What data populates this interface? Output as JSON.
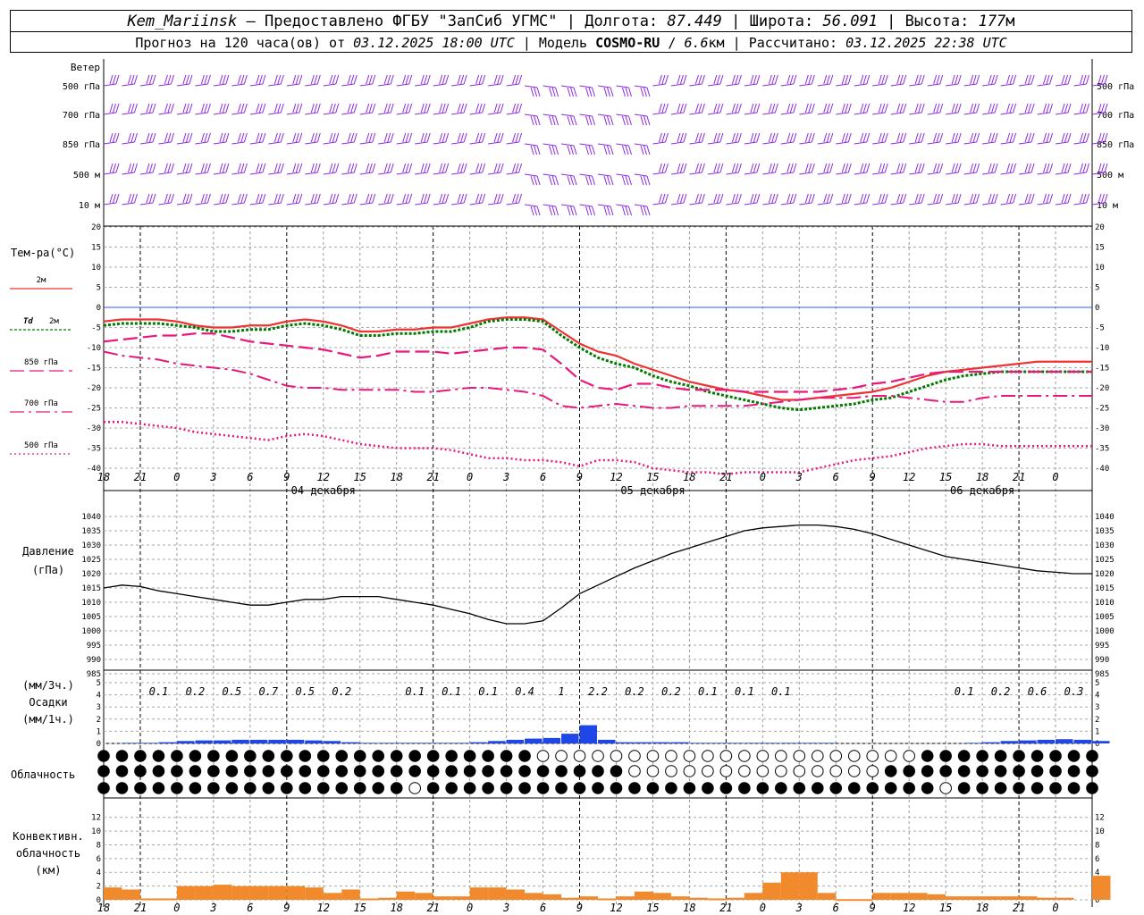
{
  "header": {
    "station": "Kem_Mariinsk",
    "dash": "–",
    "provided_by": "Предоставлено ФГБУ \"ЗапСиб УГМС\"",
    "sep": "|",
    "lon_label": "Долгота:",
    "lon_value": "87.449",
    "lat_label": "Широта:",
    "lat_value": "56.091",
    "alt_label": "Высота:",
    "alt_value": "177",
    "alt_unit": "м",
    "forecast_label": "Прогноз на 120 часа(ов) от",
    "forecast_start": "03.12.2025 18:00 UTC",
    "model_label": "Модель",
    "model_name": "COSMO-RU",
    "model_res_value": "6.6",
    "model_res_unit": "км",
    "computed_label": "Рассчитано:",
    "computed_time": "03.12.2025 22:38 UTC"
  },
  "colors": {
    "wind": "#8a2be2",
    "t2m": "#ee3333",
    "td2m": "#007a00",
    "t850": "#e8197a",
    "t700": "#e8197a",
    "t500": "#e8197a",
    "zero_line": "#3355ff",
    "precip": "#1f47e6",
    "conv": "#f08a2c",
    "pressure": "#000000"
  },
  "time_axis": {
    "hour_ticks": [
      "18",
      "21",
      "0",
      "3",
      "6",
      "9",
      "12",
      "15",
      "18",
      "21",
      "0",
      "3",
      "6",
      "9",
      "12",
      "15",
      "18",
      "21",
      "0",
      "3",
      "6",
      "9",
      "12",
      "15",
      "18",
      "21",
      "0"
    ],
    "dates": [
      "04 декабря",
      "05 декабря",
      "06 декабря"
    ]
  },
  "wind_panel": {
    "title": "Ветер",
    "levels": [
      "500 гПа",
      "700 гПа",
      "850 гПа",
      "500 м",
      "10  м"
    ]
  },
  "temp_panel": {
    "title": "Тем-ра(°C)",
    "legend": [
      {
        "label": "2м"
      },
      {
        "label_a": "Td",
        "label_b": "2м"
      },
      {
        "label": "850 гПа"
      },
      {
        "label": "700 гПа"
      },
      {
        "label": "500 гПа"
      }
    ],
    "ticks": [
      "20",
      "15",
      "10",
      "5",
      "0",
      "-5",
      "-10",
      "-15",
      "-20",
      "-25",
      "-30",
      "-35",
      "-40"
    ]
  },
  "pressure_panel": {
    "title": "Давление",
    "unit": "(гПа)",
    "ticks": [
      "1040",
      "1035",
      "1030",
      "1025",
      "1020",
      "1015",
      "1010",
      "1005",
      "1000",
      "995",
      "990",
      "985"
    ]
  },
  "precip_panel": {
    "title_a": "(мм/3ч.)",
    "title_b": "Осадки",
    "title_c": "(мм/1ч.)",
    "ticks": [
      "5",
      "4",
      "3",
      "2",
      "1",
      "0"
    ],
    "amounts_3h": [
      "0.1",
      "0.2",
      "0.5",
      "0.7",
      "0.5",
      "0.2",
      "",
      "0.1",
      "0.1",
      "0.1",
      "0.4",
      "1",
      "2.2",
      "0.2",
      "0.2",
      "0.1",
      "0.1",
      "0.1",
      "",
      "",
      "",
      "",
      "0.1",
      "0.2",
      "0.6",
      "0.3"
    ]
  },
  "cloud_panel": {
    "title": "Облачность"
  },
  "conv_panel": {
    "title_a": "Конвективн.",
    "title_b": "облачность",
    "title_c": "(км)",
    "ticks": [
      "12",
      "10",
      "8",
      "6",
      "4",
      "2",
      "0"
    ]
  },
  "chart_data": [
    {
      "type": "line",
      "title": "Тем-ра(°C)",
      "x": [
        0,
        3,
        6,
        9,
        12,
        15,
        18,
        21,
        24,
        27,
        30,
        33,
        36,
        39,
        42,
        45,
        48,
        51,
        54,
        57,
        60,
        63,
        66,
        69,
        72,
        75,
        78,
        81,
        84,
        87,
        90,
        93,
        96,
        99,
        102,
        105,
        108,
        111,
        114,
        117,
        120,
        123,
        126,
        129,
        132,
        135,
        138,
        141,
        144,
        147,
        150,
        153,
        156,
        159,
        162
      ],
      "series": [
        {
          "name": "2м",
          "values": [
            -3.5,
            -3,
            -3,
            -3,
            -3.5,
            -4.5,
            -5,
            -5,
            -4.5,
            -4.5,
            -3.5,
            -3,
            -3.5,
            -4.5,
            -6,
            -6,
            -5.5,
            -5.5,
            -5,
            -5,
            -4,
            -3,
            -2.5,
            -2.5,
            -3,
            -6,
            -9,
            -11,
            -12,
            -14,
            -15.5,
            -17,
            -18.5,
            -19.5,
            -20.5,
            -21,
            -22,
            -23,
            -23,
            -22.5,
            -22,
            -21.5,
            -21,
            -20,
            -18.5,
            -17,
            -16,
            -15.5,
            -15,
            -14.5,
            -14,
            -13.5,
            -13.5,
            -13.5,
            -13.5
          ]
        },
        {
          "name": "Td 2м",
          "values": [
            -4.5,
            -4,
            -4,
            -4,
            -4.5,
            -5,
            -6,
            -6,
            -5.5,
            -5.5,
            -4.5,
            -4,
            -4.5,
            -5.5,
            -7,
            -7,
            -6.5,
            -6.5,
            -6,
            -6,
            -5,
            -3.5,
            -3,
            -3,
            -3.5,
            -7,
            -10,
            -12.5,
            -14,
            -15,
            -17,
            -18.5,
            -19.5,
            -21,
            -22,
            -23,
            -24,
            -25,
            -25.5,
            -25,
            -24.5,
            -24,
            -23,
            -22.5,
            -21,
            -19.5,
            -18,
            -17,
            -16.5,
            -16,
            -16,
            -16,
            -16,
            -16,
            -16
          ]
        },
        {
          "name": "850 гПа",
          "values": [
            -8.5,
            -8,
            -7.5,
            -7,
            -7,
            -6.5,
            -6.5,
            -7.5,
            -8.5,
            -9,
            -9.5,
            -10,
            -10.5,
            -11.5,
            -12.5,
            -12,
            -11,
            -11,
            -11,
            -11.5,
            -11,
            -10.5,
            -10,
            -10,
            -10.5,
            -14,
            -18,
            -20,
            -20.5,
            -19,
            -19,
            -20,
            -20.5,
            -20.5,
            -20.5,
            -21,
            -21,
            -21,
            -21,
            -21,
            -20.5,
            -20,
            -19,
            -18.5,
            -17.5,
            -16.5,
            -16,
            -16,
            -16,
            -16,
            -16,
            -16,
            -16,
            -16,
            -16
          ]
        },
        {
          "name": "700 гПа",
          "values": [
            -11,
            -12,
            -12.5,
            -13,
            -14,
            -14.5,
            -15,
            -15.5,
            -16.5,
            -18,
            -19.5,
            -20,
            -20,
            -20.5,
            -20.5,
            -20.5,
            -20.5,
            -21,
            -21,
            -20.5,
            -20,
            -20,
            -20.5,
            -21,
            -22,
            -24.5,
            -25,
            -24.5,
            -24,
            -24.5,
            -25,
            -25,
            -24.5,
            -24.5,
            -24.5,
            -24.5,
            -24,
            -23.5,
            -23,
            -22.5,
            -22.5,
            -22.5,
            -22,
            -22,
            -22.5,
            -23,
            -23.5,
            -23.5,
            -22.5,
            -22,
            -22,
            -22,
            -22,
            -22,
            -22
          ]
        },
        {
          "name": "500 гПа",
          "values": [
            -28.5,
            -28.5,
            -29,
            -29.5,
            -30,
            -31,
            -31.5,
            -32,
            -32.5,
            -33,
            -32,
            -31.5,
            -32,
            -33,
            -34,
            -34.5,
            -35,
            -35,
            -35,
            -35.5,
            -36.5,
            -37.5,
            -37.5,
            -38,
            -38,
            -38.5,
            -39.5,
            -38,
            -38,
            -38.5,
            -40,
            -40.5,
            -41,
            -41,
            -41.5,
            -41,
            -41,
            -41,
            -41,
            -40,
            -39,
            -38,
            -37.5,
            -37,
            -36,
            -35,
            -34.5,
            -34,
            -34,
            -34.5,
            -34.5,
            -34.5,
            -34.5,
            -34.5,
            -34.5
          ]
        }
      ],
      "ylim": [
        -40,
        20
      ]
    },
    {
      "type": "line",
      "title": "Давление (гПа)",
      "x": [
        0,
        3,
        6,
        9,
        12,
        15,
        18,
        21,
        24,
        27,
        30,
        33,
        36,
        39,
        42,
        45,
        48,
        51,
        54,
        57,
        60,
        63,
        66,
        69,
        72,
        75,
        78,
        81,
        84,
        87,
        90,
        93,
        96,
        99,
        102,
        105,
        108,
        111,
        114,
        117,
        120,
        123,
        126,
        129,
        132,
        135,
        138,
        141,
        144,
        147,
        150,
        153,
        156,
        159,
        162
      ],
      "series": [
        {
          "name": "",
          "values": [
            1015,
            1016,
            1015.5,
            1014,
            1013,
            1012,
            1011,
            1010,
            1009,
            1009,
            1010,
            1011,
            1011,
            1012,
            1012,
            1012,
            1011,
            1010,
            1009,
            1007.5,
            1006,
            1004,
            1002.5,
            1002.5,
            1003.5,
            1008,
            1013,
            1016,
            1019,
            1022,
            1024.5,
            1027,
            1029,
            1031,
            1033,
            1035,
            1036,
            1036.5,
            1037,
            1037,
            1036.5,
            1035.5,
            1034,
            1032,
            1030,
            1028,
            1026,
            1025,
            1024,
            1023,
            1022,
            1021,
            1020.5,
            1020,
            1020
          ]
        }
      ],
      "ylim": [
        985,
        1040
      ]
    },
    {
      "type": "bar",
      "title": "Осадки (мм/1ч.)",
      "x": [
        0,
        3,
        6,
        9,
        12,
        15,
        18,
        21,
        24,
        27,
        30,
        33,
        36,
        39,
        42,
        45,
        48,
        51,
        54,
        57,
        60,
        63,
        66,
        69,
        72,
        75,
        78,
        81,
        84,
        87,
        90,
        93,
        96,
        99,
        102,
        105,
        108,
        111,
        114,
        117,
        120,
        123,
        126,
        129,
        132,
        135,
        138,
        141,
        144,
        147,
        150,
        153,
        156,
        159,
        162
      ],
      "values": [
        0,
        0.05,
        0.05,
        0.1,
        0.2,
        0.25,
        0.25,
        0.3,
        0.3,
        0.3,
        0.3,
        0.25,
        0.2,
        0.1,
        0.05,
        0.05,
        0.05,
        0.05,
        0.05,
        0.05,
        0.1,
        0.2,
        0.3,
        0.4,
        0.45,
        0.8,
        1.5,
        0.3,
        0.1,
        0.1,
        0.1,
        0.1,
        0.05,
        0.05,
        0.05,
        0.05,
        0.05,
        0.05,
        0.05,
        0.05,
        0,
        0,
        0,
        0,
        0,
        0,
        0,
        0.05,
        0.1,
        0.2,
        0.25,
        0.3,
        0.35,
        0.3,
        0.2
      ],
      "ylim": [
        0,
        5
      ]
    },
    {
      "type": "bar",
      "title": "Конвективн. облачность (км)",
      "x": [
        0,
        3,
        6,
        9,
        12,
        15,
        18,
        21,
        24,
        27,
        30,
        33,
        36,
        39,
        42,
        45,
        48,
        51,
        54,
        57,
        60,
        63,
        66,
        69,
        72,
        75,
        78,
        81,
        84,
        87,
        90,
        93,
        96,
        99,
        102,
        105,
        108,
        111,
        114,
        117,
        120,
        123,
        126,
        129,
        132,
        135,
        138,
        141,
        144,
        147,
        150,
        153,
        156,
        159,
        162
      ],
      "values": [
        1.8,
        1.5,
        0.2,
        0.2,
        2,
        2,
        2.2,
        2,
        2,
        2,
        2,
        1.8,
        1,
        1.5,
        0.2,
        0.3,
        1.2,
        1,
        0.5,
        0.5,
        1.8,
        1.8,
        1.5,
        1,
        0.8,
        0.3,
        0.5,
        0.2,
        0.5,
        1.2,
        1,
        0.5,
        0.3,
        0.2,
        0.3,
        1,
        2.5,
        4,
        4,
        1,
        0.1,
        0.1,
        1,
        1,
        1,
        0.8,
        0.5,
        0.5,
        0.5,
        0.5,
        0.5,
        0.3,
        0.3,
        0,
        3.5
      ],
      "ylim": [
        0,
        13
      ]
    }
  ]
}
